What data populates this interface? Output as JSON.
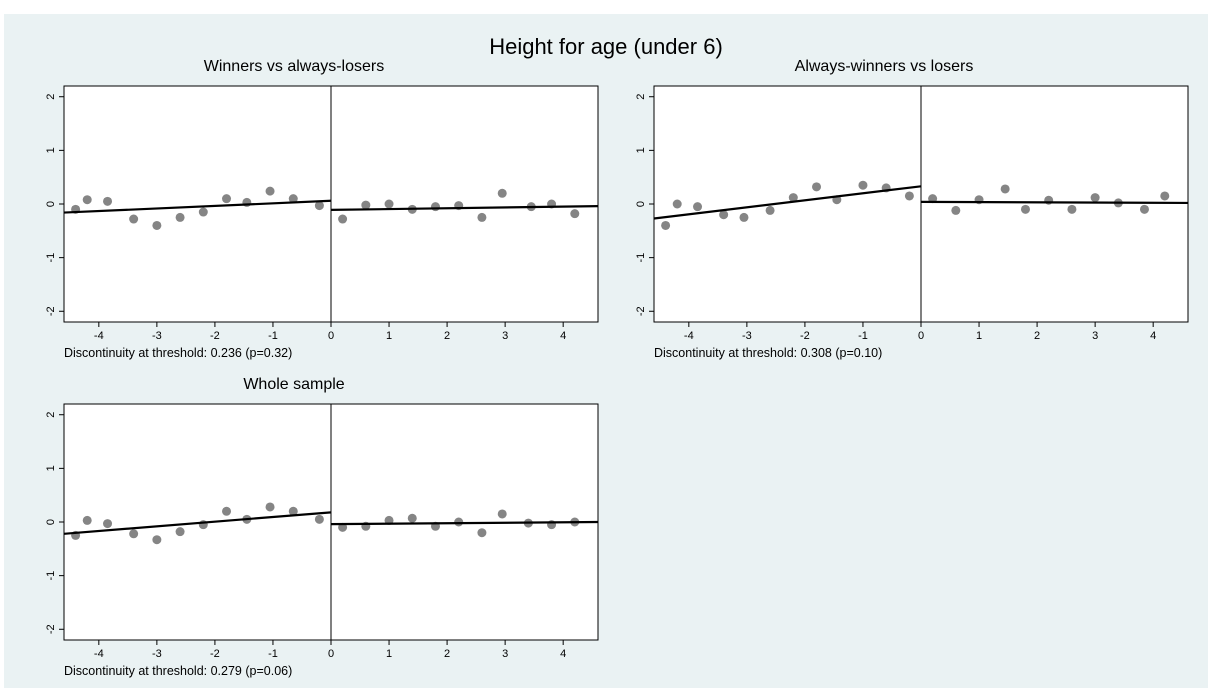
{
  "figure": {
    "title": "Height for age (under 6)"
  },
  "chart_data": [
    {
      "type": "scatter",
      "title": "Winners vs always-losers",
      "xlim": [
        -4.6,
        4.6
      ],
      "ylim": [
        -2.2,
        2.2
      ],
      "xticks": [
        -4,
        -3,
        -2,
        -1,
        0,
        1,
        2,
        3,
        4
      ],
      "yticks": [
        -2,
        -1,
        0,
        1,
        2
      ],
      "threshold": 0,
      "points": [
        {
          "x": -4.4,
          "y": -0.1
        },
        {
          "x": -4.2,
          "y": 0.08
        },
        {
          "x": -3.85,
          "y": 0.05
        },
        {
          "x": -3.4,
          "y": -0.28
        },
        {
          "x": -3.0,
          "y": -0.4
        },
        {
          "x": -2.6,
          "y": -0.25
        },
        {
          "x": -2.2,
          "y": -0.15
        },
        {
          "x": -1.8,
          "y": 0.1
        },
        {
          "x": -1.45,
          "y": 0.03
        },
        {
          "x": -1.05,
          "y": 0.24
        },
        {
          "x": -0.65,
          "y": 0.1
        },
        {
          "x": -0.2,
          "y": -0.03
        },
        {
          "x": 0.2,
          "y": -0.28
        },
        {
          "x": 0.6,
          "y": -0.02
        },
        {
          "x": 1.0,
          "y": 0.0
        },
        {
          "x": 1.4,
          "y": -0.1
        },
        {
          "x": 1.8,
          "y": -0.05
        },
        {
          "x": 2.2,
          "y": -0.03
        },
        {
          "x": 2.6,
          "y": -0.25
        },
        {
          "x": 2.95,
          "y": 0.2
        },
        {
          "x": 3.45,
          "y": -0.05
        },
        {
          "x": 3.8,
          "y": 0.0
        },
        {
          "x": 4.2,
          "y": -0.18
        }
      ],
      "fit_left": {
        "x": [
          -4.6,
          0
        ],
        "y": [
          -0.16,
          0.06
        ]
      },
      "fit_right": {
        "x": [
          0,
          4.6
        ],
        "y": [
          -0.11,
          -0.04
        ]
      },
      "note": "Discontinuity at threshold: 0.236 (p=0.32)"
    },
    {
      "type": "scatter",
      "title": "Always-winners vs losers",
      "xlim": [
        -4.6,
        4.6
      ],
      "ylim": [
        -2.2,
        2.2
      ],
      "xticks": [
        -4,
        -3,
        -2,
        -1,
        0,
        1,
        2,
        3,
        4
      ],
      "yticks": [
        -2,
        -1,
        0,
        1,
        2
      ],
      "threshold": 0,
      "points": [
        {
          "x": -4.4,
          "y": -0.4
        },
        {
          "x": -4.2,
          "y": 0.0
        },
        {
          "x": -3.85,
          "y": -0.05
        },
        {
          "x": -3.4,
          "y": -0.2
        },
        {
          "x": -3.05,
          "y": -0.25
        },
        {
          "x": -2.6,
          "y": -0.12
        },
        {
          "x": -2.2,
          "y": 0.12
        },
        {
          "x": -1.8,
          "y": 0.32
        },
        {
          "x": -1.45,
          "y": 0.08
        },
        {
          "x": -1.0,
          "y": 0.35
        },
        {
          "x": -0.6,
          "y": 0.3
        },
        {
          "x": -0.2,
          "y": 0.15
        },
        {
          "x": 0.2,
          "y": 0.1
        },
        {
          "x": 0.6,
          "y": -0.12
        },
        {
          "x": 1.0,
          "y": 0.08
        },
        {
          "x": 1.45,
          "y": 0.28
        },
        {
          "x": 1.8,
          "y": -0.1
        },
        {
          "x": 2.2,
          "y": 0.07
        },
        {
          "x": 2.6,
          "y": -0.1
        },
        {
          "x": 3.0,
          "y": 0.12
        },
        {
          "x": 3.4,
          "y": 0.02
        },
        {
          "x": 3.85,
          "y": -0.1
        },
        {
          "x": 4.2,
          "y": 0.15
        }
      ],
      "fit_left": {
        "x": [
          -4.6,
          0
        ],
        "y": [
          -0.27,
          0.33
        ]
      },
      "fit_right": {
        "x": [
          0,
          4.6
        ],
        "y": [
          0.04,
          0.02
        ]
      },
      "note": "Discontinuity at threshold: 0.308 (p=0.10)"
    },
    {
      "type": "scatter",
      "title": "Whole sample",
      "xlim": [
        -4.6,
        4.6
      ],
      "ylim": [
        -2.2,
        2.2
      ],
      "xticks": [
        -4,
        -3,
        -2,
        -1,
        0,
        1,
        2,
        3,
        4
      ],
      "yticks": [
        -2,
        -1,
        0,
        1,
        2
      ],
      "threshold": 0,
      "points": [
        {
          "x": -4.4,
          "y": -0.25
        },
        {
          "x": -4.2,
          "y": 0.03
        },
        {
          "x": -3.85,
          "y": -0.03
        },
        {
          "x": -3.4,
          "y": -0.22
        },
        {
          "x": -3.0,
          "y": -0.33
        },
        {
          "x": -2.6,
          "y": -0.18
        },
        {
          "x": -2.2,
          "y": -0.05
        },
        {
          "x": -1.8,
          "y": 0.2
        },
        {
          "x": -1.45,
          "y": 0.05
        },
        {
          "x": -1.05,
          "y": 0.28
        },
        {
          "x": -0.65,
          "y": 0.2
        },
        {
          "x": -0.2,
          "y": 0.05
        },
        {
          "x": 0.2,
          "y": -0.1
        },
        {
          "x": 0.6,
          "y": -0.08
        },
        {
          "x": 1.0,
          "y": 0.03
        },
        {
          "x": 1.4,
          "y": 0.07
        },
        {
          "x": 1.8,
          "y": -0.08
        },
        {
          "x": 2.2,
          "y": 0.0
        },
        {
          "x": 2.6,
          "y": -0.2
        },
        {
          "x": 2.95,
          "y": 0.15
        },
        {
          "x": 3.4,
          "y": -0.02
        },
        {
          "x": 3.8,
          "y": -0.05
        },
        {
          "x": 4.2,
          "y": 0.0
        }
      ],
      "fit_left": {
        "x": [
          -4.6,
          0
        ],
        "y": [
          -0.22,
          0.18
        ]
      },
      "fit_right": {
        "x": [
          0,
          4.6
        ],
        "y": [
          -0.04,
          0.0
        ]
      },
      "note": "Discontinuity at threshold: 0.279 (p=0.06)"
    }
  ],
  "style": {
    "background": "#eaf2f3",
    "plot_background": "#ffffff",
    "marker_color": "#858585",
    "line_color": "#000000"
  }
}
